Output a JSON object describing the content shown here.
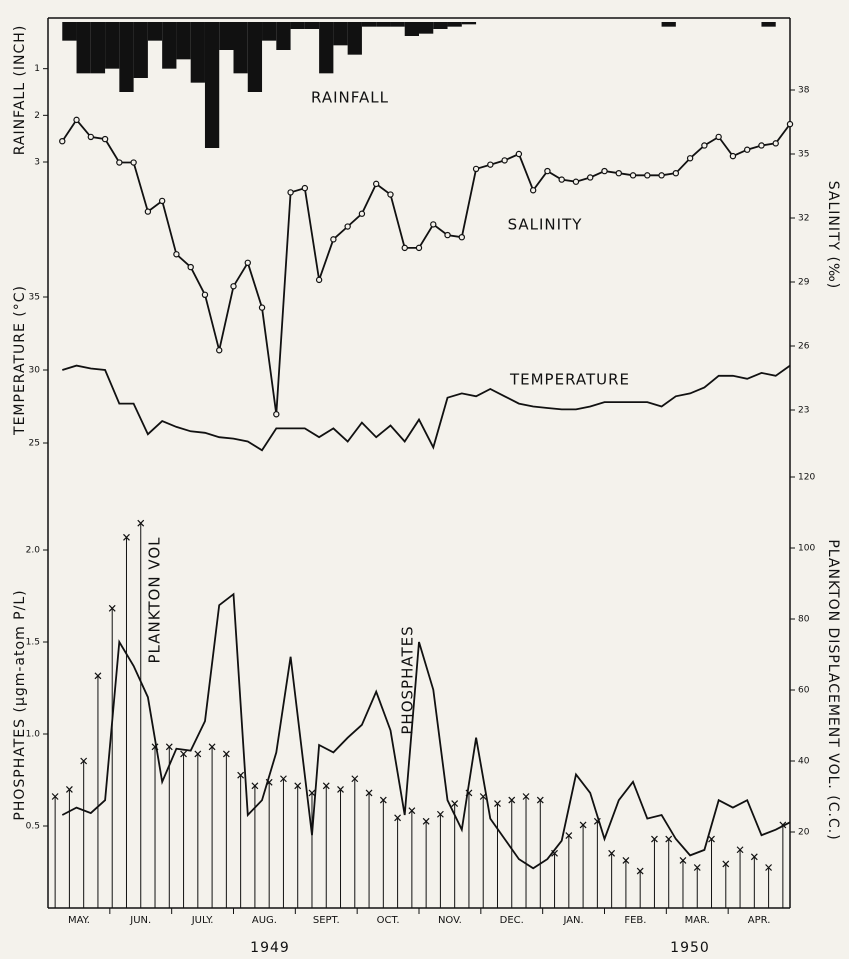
{
  "x_axis": {
    "categories": [
      "MAY.",
      "JUN.",
      "JULY.",
      "AUG.",
      "SEPT.",
      "OCT.",
      "NOV.",
      "DEC.",
      "JAN.",
      "FEB.",
      "MAR.",
      "APR."
    ],
    "years": [
      "1949",
      "1950"
    ],
    "xlim": [
      0,
      52
    ]
  },
  "chart_data": [
    {
      "type": "bar",
      "label": "RAINFALL",
      "y_label": "RAINFALL (INCH)",
      "side": "left",
      "color": "#111111",
      "x": [
        1,
        2,
        3,
        4,
        5,
        6,
        7,
        8,
        9,
        10,
        11,
        12,
        13,
        14,
        15,
        16,
        17,
        18,
        19,
        20,
        21,
        22,
        23,
        24,
        25,
        26,
        27,
        28,
        29,
        43,
        50
      ],
      "values": [
        0.4,
        1.1,
        1.1,
        1.0,
        1.5,
        1.2,
        0.4,
        1.0,
        0.8,
        1.3,
        2.7,
        0.6,
        1.1,
        1.5,
        0.4,
        0.6,
        0.15,
        0.15,
        1.1,
        0.5,
        0.7,
        0.1,
        0.1,
        0.1,
        0.3,
        0.25,
        0.15,
        0.1,
        0.05,
        0.1,
        0.1
      ],
      "ylim": [
        0,
        3
      ],
      "yticks": [
        1,
        2,
        3
      ]
    },
    {
      "type": "line",
      "label": "SALINITY",
      "y_label": "SALINITY (‰)",
      "side": "right",
      "color": "#111111",
      "marker": "circle",
      "x": [
        1,
        2,
        3,
        4,
        5,
        6,
        7,
        8,
        9,
        10,
        11,
        12,
        13,
        14,
        15,
        16,
        17,
        18,
        19,
        20,
        21,
        22,
        23,
        24,
        25,
        26,
        27,
        28,
        29,
        30,
        31,
        32,
        33,
        34,
        35,
        36,
        37,
        38,
        39,
        40,
        41,
        42,
        43,
        44,
        45,
        46,
        47,
        48,
        49,
        50,
        51,
        52
      ],
      "values": [
        35.6,
        36.6,
        35.8,
        35.7,
        34.6,
        34.6,
        32.3,
        32.8,
        30.3,
        29.7,
        28.4,
        25.8,
        28.8,
        29.9,
        27.8,
        22.8,
        33.2,
        33.4,
        29.1,
        31.0,
        31.6,
        32.2,
        33.6,
        33.1,
        30.6,
        30.6,
        31.7,
        31.2,
        31.1,
        34.3,
        34.5,
        34.7,
        35.0,
        33.3,
        34.2,
        33.8,
        33.7,
        33.9,
        34.2,
        34.1,
        34.0,
        34.0,
        34.0,
        34.1,
        34.8,
        35.4,
        35.8,
        34.9,
        35.2,
        35.4,
        35.5,
        36.4
      ],
      "ylim": [
        23,
        38
      ],
      "yticks": [
        23,
        26,
        29,
        32,
        35,
        38
      ]
    },
    {
      "type": "line",
      "label": "TEMPERATURE",
      "y_label": "TEMPERATURE (°C)",
      "side": "left",
      "color": "#111111",
      "x": [
        1,
        2,
        3,
        4,
        5,
        6,
        7,
        8,
        9,
        10,
        11,
        12,
        13,
        14,
        15,
        16,
        17,
        18,
        19,
        20,
        21,
        22,
        23,
        24,
        25,
        26,
        27,
        28,
        29,
        30,
        31,
        32,
        33,
        34,
        35,
        36,
        37,
        38,
        39,
        40,
        41,
        42,
        43,
        44,
        45,
        46,
        47,
        48,
        49,
        50,
        51,
        52
      ],
      "values": [
        30,
        30.3,
        30.1,
        30,
        27.7,
        27.7,
        25.6,
        26.5,
        26.1,
        25.8,
        25.7,
        25.4,
        25.3,
        25.1,
        24.5,
        26.0,
        26.0,
        26.0,
        25.4,
        26.0,
        25.1,
        26.4,
        25.4,
        26.2,
        25.1,
        26.6,
        24.7,
        28.1,
        28.4,
        28.2,
        28.7,
        28.2,
        27.7,
        27.5,
        27.4,
        27.3,
        27.3,
        27.5,
        27.8,
        27.8,
        27.8,
        27.8,
        27.5,
        28.2,
        28.4,
        28.8,
        29.6,
        29.6,
        29.4,
        29.8,
        29.6,
        30.3
      ],
      "ylim": [
        25,
        35
      ],
      "yticks": [
        25,
        30,
        35
      ]
    },
    {
      "type": "stem",
      "label": "PLANKTON VOL",
      "y_label": "PLANKTON DISPLACEMENT VOL. (C.C.)",
      "side": "right",
      "color": "#111111",
      "x": [
        0.5,
        1.5,
        2.5,
        3.5,
        4.5,
        5.5,
        6.5,
        7.5,
        8.5,
        9.5,
        10.5,
        11.5,
        12.5,
        13.5,
        14.5,
        15.5,
        16.5,
        17.5,
        18.5,
        19.5,
        20.5,
        21.5,
        22.5,
        23.5,
        24.5,
        25.5,
        26.5,
        27.5,
        28.5,
        29.5,
        30.5,
        31.5,
        32.5,
        33.5,
        34.5,
        35.5,
        36.5,
        37.5,
        38.5,
        39.5,
        40.5,
        41.5,
        42.5,
        43.5,
        44.5,
        45.5,
        46.5,
        47.5,
        48.5,
        49.5,
        50.5,
        51.5
      ],
      "values": [
        30,
        32,
        40,
        64,
        83,
        103,
        107,
        44,
        44,
        42,
        42,
        44,
        42,
        36,
        33,
        34,
        35,
        33,
        31,
        33,
        32,
        35,
        31,
        29,
        24,
        26,
        23,
        25,
        28,
        31,
        30,
        28,
        29,
        30,
        29,
        14,
        19,
        22,
        23,
        14,
        12,
        9,
        18,
        18,
        12,
        10,
        18,
        11,
        15,
        13,
        10,
        22
      ],
      "ylim": [
        0,
        120
      ],
      "yticks": [
        20,
        40,
        60,
        80,
        100,
        120
      ]
    },
    {
      "type": "line",
      "label": "PHOSPHATES",
      "y_label": "PHOSPHATES (µgm-atom P/L)",
      "side": "left",
      "color": "#111111",
      "x": [
        1,
        2,
        3,
        4,
        5,
        6,
        7,
        8,
        9,
        10,
        11,
        12,
        13,
        14,
        15,
        16,
        17,
        18.5,
        19,
        20,
        21,
        22,
        23,
        24,
        25,
        26,
        27,
        28,
        29,
        30,
        31,
        32,
        33,
        34,
        35,
        36,
        37,
        38,
        39,
        40,
        41,
        42,
        43,
        44,
        45,
        46,
        47,
        48,
        49,
        50,
        51,
        52
      ],
      "values": [
        0.56,
        0.6,
        0.57,
        0.64,
        1.5,
        1.37,
        1.2,
        0.74,
        0.92,
        0.91,
        1.07,
        1.7,
        1.76,
        0.56,
        0.64,
        0.9,
        1.42,
        0.45,
        0.94,
        0.9,
        0.98,
        1.05,
        1.23,
        1.02,
        0.56,
        1.5,
        1.24,
        0.64,
        0.48,
        0.98,
        0.54,
        0.43,
        0.32,
        0.27,
        0.32,
        0.42,
        0.78,
        0.68,
        0.43,
        0.64,
        0.74,
        0.54,
        0.56,
        0.43,
        0.34,
        0.37,
        0.64,
        0.6,
        0.64,
        0.45,
        0.48,
        0.52
      ],
      "ylim": [
        0,
        2
      ],
      "yticks": [
        0.5,
        {
          "value": 1,
          "label": "1.0"
        },
        1.5,
        {
          "value": 2,
          "label": "2.0"
        }
      ]
    }
  ]
}
